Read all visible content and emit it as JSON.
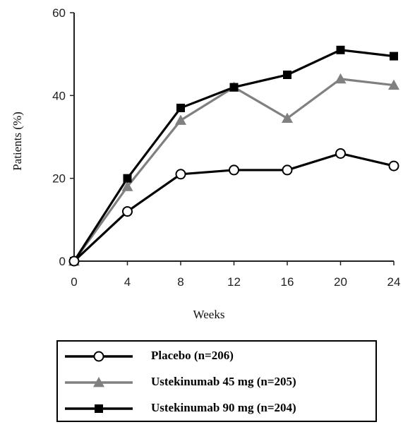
{
  "chart_data": {
    "type": "line",
    "xlabel": "Weeks",
    "ylabel": "Patients (%)",
    "x": [
      0,
      4,
      8,
      12,
      16,
      20,
      24
    ],
    "xticks": [
      "0",
      "4",
      "8",
      "12",
      "16",
      "20",
      "24"
    ],
    "yticks": [
      "0",
      "20",
      "40",
      "60"
    ],
    "xlim": [
      0,
      24
    ],
    "ylim": [
      0,
      60
    ],
    "grid": false,
    "legend_position": "bottom",
    "series": [
      {
        "name": "Placebo (n=206)",
        "marker": "open-circle",
        "color": "#000000",
        "values": [
          0,
          12,
          21,
          22,
          22,
          26,
          23
        ]
      },
      {
        "name": "Ustekinumab 45 mg (n=205)",
        "marker": "triangle",
        "color": "#808080",
        "values": [
          0,
          18,
          34,
          42,
          34.5,
          44,
          42.5
        ]
      },
      {
        "name": "Ustekinumab 90 mg (n=204)",
        "marker": "square",
        "color": "#000000",
        "values": [
          0,
          20,
          37,
          42,
          45,
          51,
          49.5
        ]
      }
    ]
  }
}
